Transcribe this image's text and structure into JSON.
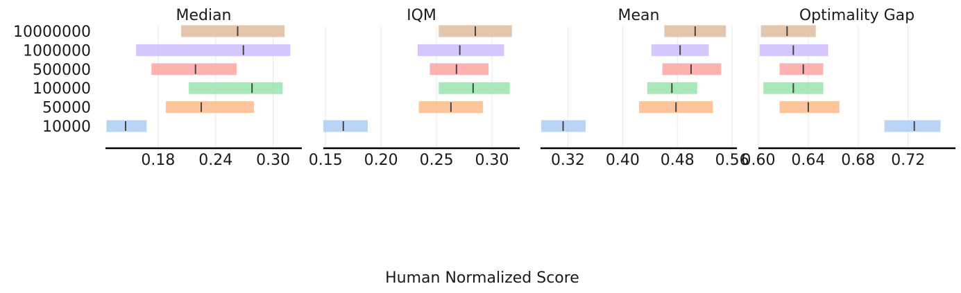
{
  "chart_data": {
    "type": "interval",
    "xlabel": "Human Normalized Score",
    "categories": [
      "10000",
      "50000",
      "100000",
      "500000",
      "1000000",
      "10000000"
    ],
    "colors": {
      "10000": "#a7cbf4",
      "50000": "#feb684",
      "100000": "#93e2a6",
      "500000": "#fe9f9f",
      "1000000": "#cbb8fe",
      "10000000": "#ddb898"
    },
    "grid": true,
    "panels": [
      {
        "title": "Median",
        "xlim": [
          0.125,
          0.33
        ],
        "ticks": [
          0.18,
          0.24,
          0.3
        ],
        "tick_labels": [
          "0.18",
          "0.24",
          "0.30"
        ],
        "intervals": [
          {
            "category": "10000",
            "low": 0.126,
            "high": 0.168,
            "point": 0.146
          },
          {
            "category": "50000",
            "low": 0.188,
            "high": 0.28,
            "point": 0.225
          },
          {
            "category": "100000",
            "low": 0.212,
            "high": 0.31,
            "point": 0.278
          },
          {
            "category": "500000",
            "low": 0.173,
            "high": 0.262,
            "point": 0.219
          },
          {
            "category": "1000000",
            "low": 0.157,
            "high": 0.318,
            "point": 0.269
          },
          {
            "category": "10000000",
            "low": 0.204,
            "high": 0.312,
            "point": 0.263
          }
        ]
      },
      {
        "title": "IQM",
        "xlim": [
          0.148,
          0.325
        ],
        "ticks": [
          0.15,
          0.2,
          0.25,
          0.3
        ],
        "tick_labels": [
          "0.15",
          "0.20",
          "0.25",
          "0.30"
        ],
        "intervals": [
          {
            "category": "10000",
            "low": 0.148,
            "high": 0.188,
            "point": 0.166
          },
          {
            "category": "50000",
            "low": 0.234,
            "high": 0.292,
            "point": 0.263
          },
          {
            "category": "100000",
            "low": 0.252,
            "high": 0.316,
            "point": 0.283
          },
          {
            "category": "500000",
            "low": 0.244,
            "high": 0.297,
            "point": 0.268
          },
          {
            "category": "1000000",
            "low": 0.233,
            "high": 0.311,
            "point": 0.271
          },
          {
            "category": "10000000",
            "low": 0.252,
            "high": 0.318,
            "point": 0.285
          }
        ]
      },
      {
        "title": "Mean",
        "xlim": [
          0.28,
          0.567
        ],
        "ticks": [
          0.32,
          0.4,
          0.48,
          0.56
        ],
        "tick_labels": [
          "0.32",
          "0.40",
          "0.48",
          "0.56"
        ],
        "intervals": [
          {
            "category": "10000",
            "low": 0.281,
            "high": 0.346,
            "point": 0.313
          },
          {
            "category": "50000",
            "low": 0.424,
            "high": 0.532,
            "point": 0.478
          },
          {
            "category": "100000",
            "low": 0.436,
            "high": 0.509,
            "point": 0.472
          },
          {
            "category": "500000",
            "low": 0.458,
            "high": 0.544,
            "point": 0.5
          },
          {
            "category": "1000000",
            "low": 0.442,
            "high": 0.526,
            "point": 0.484
          },
          {
            "category": "10000000",
            "low": 0.461,
            "high": 0.551,
            "point": 0.506
          }
        ]
      },
      {
        "title": "Optimality Gap",
        "xlim": [
          0.6,
          0.758
        ],
        "ticks": [
          0.6,
          0.64,
          0.68,
          0.72
        ],
        "tick_labels": [
          "0.60",
          "0.64",
          "0.68",
          "0.72"
        ],
        "intervals": [
          {
            "category": "10000",
            "low": 0.701,
            "high": 0.746,
            "point": 0.725
          },
          {
            "category": "50000",
            "low": 0.617,
            "high": 0.665,
            "point": 0.64
          },
          {
            "category": "100000",
            "low": 0.604,
            "high": 0.652,
            "point": 0.628
          },
          {
            "category": "500000",
            "low": 0.617,
            "high": 0.652,
            "point": 0.636
          },
          {
            "category": "1000000",
            "low": 0.601,
            "high": 0.656,
            "point": 0.628
          },
          {
            "category": "10000000",
            "low": 0.602,
            "high": 0.646,
            "point": 0.623
          }
        ]
      }
    ]
  }
}
